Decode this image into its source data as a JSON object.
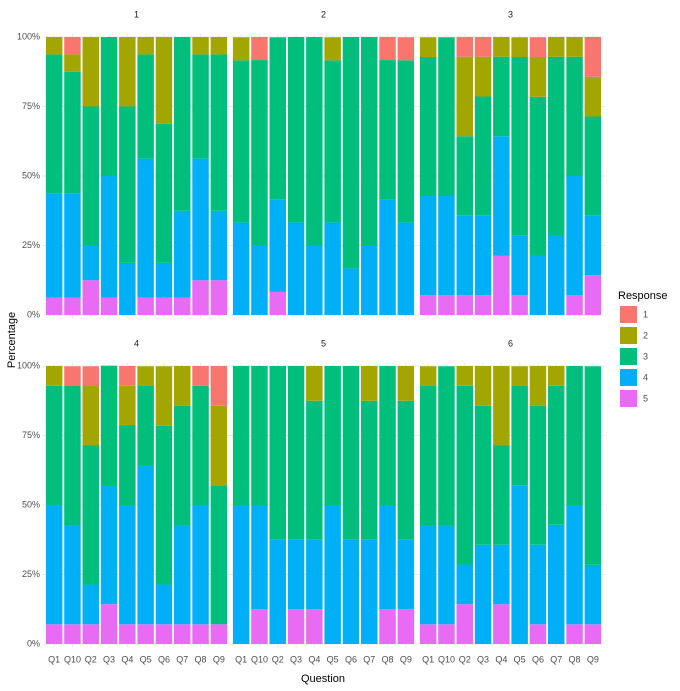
{
  "chart_data": {
    "type": "stacked_bar_facets",
    "x_label": "Question",
    "y_label": "Percentage",
    "legend_title": "Response",
    "categories": [
      "Q1",
      "Q10",
      "Q2",
      "Q3",
      "Q4",
      "Q5",
      "Q6",
      "Q7",
      "Q8",
      "Q9"
    ],
    "ylim": [
      0,
      100
    ],
    "yticks": [
      {
        "value": 0,
        "label": "0%"
      },
      {
        "value": 25,
        "label": "25%"
      },
      {
        "value": 50,
        "label": "50%"
      },
      {
        "value": 75,
        "label": "75%"
      },
      {
        "value": 100,
        "label": "100%"
      }
    ],
    "grid": true,
    "series": [
      {
        "name": "1",
        "color": "#F8766D"
      },
      {
        "name": "2",
        "color": "#A3A500"
      },
      {
        "name": "3",
        "color": "#00BF7D"
      },
      {
        "name": "4",
        "color": "#00B0F6"
      },
      {
        "name": "5",
        "color": "#E76BF3"
      }
    ],
    "facets": [
      {
        "title": "1",
        "values": [
          [
            0,
            6.25,
            0,
            0,
            0,
            0,
            0,
            0,
            0,
            0
          ],
          [
            6.25,
            6.25,
            25,
            0,
            25,
            6.25,
            31.25,
            0,
            6.25,
            6.25
          ],
          [
            50,
            43.75,
            50,
            50,
            56.25,
            37.5,
            50,
            62.5,
            37.5,
            56.25
          ],
          [
            37.5,
            37.5,
            12.5,
            43.75,
            18.75,
            50,
            12.5,
            31.25,
            43.75,
            25
          ],
          [
            6.25,
            6.25,
            12.5,
            6.25,
            0,
            6.25,
            6.25,
            6.25,
            12.5,
            12.5
          ]
        ]
      },
      {
        "title": "2",
        "values": [
          [
            0,
            8.3,
            0,
            0,
            0,
            0,
            0,
            0,
            8.3,
            8.3
          ],
          [
            8.3,
            0,
            0,
            0,
            0,
            8.3,
            0,
            0,
            0,
            0
          ],
          [
            58.3,
            66.7,
            58.3,
            66.7,
            75,
            58.3,
            83.3,
            75,
            50,
            58.3
          ],
          [
            33.3,
            25,
            33.3,
            33.3,
            25,
            33.3,
            16.7,
            25,
            41.7,
            33.3
          ],
          [
            0,
            0,
            8.3,
            0,
            0,
            0,
            0,
            0,
            0,
            0
          ]
        ]
      },
      {
        "title": "3",
        "values": [
          [
            0,
            0,
            7.1,
            7.1,
            0,
            0,
            7.1,
            0,
            0,
            14.3
          ],
          [
            7.1,
            0,
            28.6,
            14.3,
            7.1,
            7.1,
            14.3,
            7.1,
            7.1,
            14.3
          ],
          [
            50,
            57.1,
            28.6,
            42.9,
            28.6,
            64.3,
            57.1,
            64.3,
            42.9,
            35.7
          ],
          [
            35.7,
            35.7,
            28.6,
            28.6,
            42.9,
            21.4,
            21.4,
            28.6,
            42.9,
            21.4
          ],
          [
            7.1,
            7.1,
            7.1,
            7.1,
            21.4,
            7.1,
            0,
            0,
            7.1,
            14.3
          ]
        ]
      },
      {
        "title": "4",
        "values": [
          [
            0,
            7.1,
            7.1,
            0,
            7.1,
            0,
            0,
            0,
            7.1,
            14.3
          ],
          [
            7.1,
            0,
            21.4,
            0,
            14.3,
            7.1,
            21.4,
            14.3,
            0,
            28.6
          ],
          [
            42.9,
            50,
            50,
            42.9,
            28.6,
            28.6,
            57.1,
            42.9,
            42.9,
            50
          ],
          [
            42.9,
            35.7,
            14.3,
            42.9,
            42.9,
            57.1,
            14.3,
            35.7,
            42.9,
            0
          ],
          [
            7.1,
            7.1,
            7.1,
            14.3,
            7.1,
            7.1,
            7.1,
            7.1,
            7.1,
            7.1
          ]
        ]
      },
      {
        "title": "5",
        "values": [
          [
            0,
            0,
            0,
            0,
            0,
            0,
            0,
            0,
            0,
            0
          ],
          [
            0,
            0,
            0,
            0,
            12.5,
            0,
            0,
            12.5,
            0,
            12.5
          ],
          [
            50,
            50,
            62.5,
            62.5,
            50,
            50,
            62.5,
            50,
            50,
            50
          ],
          [
            50,
            37.5,
            37.5,
            25,
            25,
            50,
            37.5,
            37.5,
            37.5,
            25
          ],
          [
            0,
            12.5,
            0,
            12.5,
            12.5,
            0,
            0,
            0,
            12.5,
            12.5
          ]
        ]
      },
      {
        "title": "6",
        "values": [
          [
            0,
            0,
            0,
            0,
            0,
            0,
            0,
            0,
            0,
            0
          ],
          [
            7.1,
            0,
            7.1,
            14.3,
            28.6,
            7.1,
            14.3,
            7.1,
            0,
            0
          ],
          [
            50,
            57.1,
            64.3,
            50,
            35.7,
            35.7,
            50,
            50,
            50,
            71.4
          ],
          [
            35.7,
            35.7,
            14.3,
            35.7,
            21.4,
            57.1,
            28.6,
            42.9,
            42.9,
            21.4
          ],
          [
            7.1,
            7.1,
            14.3,
            0,
            14.3,
            0,
            7.1,
            0,
            7.1,
            7.1
          ]
        ]
      }
    ]
  }
}
